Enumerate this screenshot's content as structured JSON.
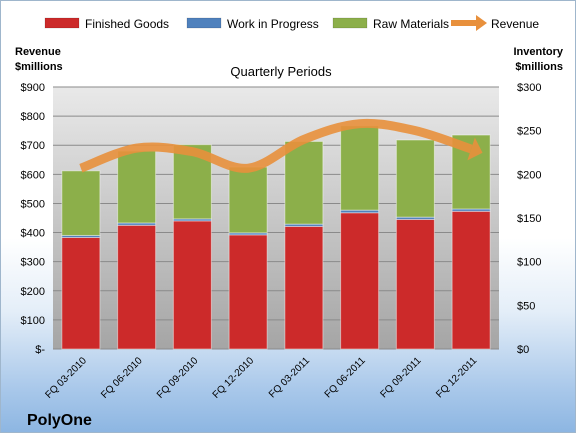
{
  "company": "PolyOne",
  "chart_data": {
    "type": "bar",
    "stacked": true,
    "title": "Quarterly Periods",
    "categories": [
      "FQ 03-2010",
      "FQ 06-2010",
      "FQ 09-2010",
      "FQ 12-2010",
      "FQ 03-2011",
      "FQ 06-2011",
      "FQ 09-2011",
      "FQ 12-2011"
    ],
    "series": [
      {
        "name": "Finished Goods",
        "color": "#cc2a2a",
        "values": [
          383,
          425,
          440,
          392,
          421,
          468,
          445,
          473
        ]
      },
      {
        "name": "Work in Progress",
        "color": "#4f81bd",
        "values": [
          7,
          8,
          7,
          7,
          8,
          9,
          8,
          8
        ]
      },
      {
        "name": "Raw Materials",
        "color": "#8caf4a",
        "values": [
          222,
          247,
          255,
          226,
          284,
          290,
          265,
          254
        ]
      }
    ],
    "line_series": {
      "name": "Revenue",
      "color": "#e8903c",
      "values": [
        207,
        230,
        226,
        207,
        240,
        258,
        250,
        229
      ]
    },
    "ylabel_left": "Revenue\n$millions",
    "ylabel_right": "Inventory\n$millions",
    "ylim_left": [
      0,
      900
    ],
    "ylim_right": [
      0,
      300
    ],
    "yticks_left": [
      "$-",
      "$100",
      "$200",
      "$300",
      "$400",
      "$500",
      "$600",
      "$700",
      "$800",
      "$900"
    ],
    "yticks_right": [
      "$0",
      "$50",
      "$100",
      "$150",
      "$200",
      "$250",
      "$300"
    ],
    "legend_position": "top",
    "grid": true
  }
}
